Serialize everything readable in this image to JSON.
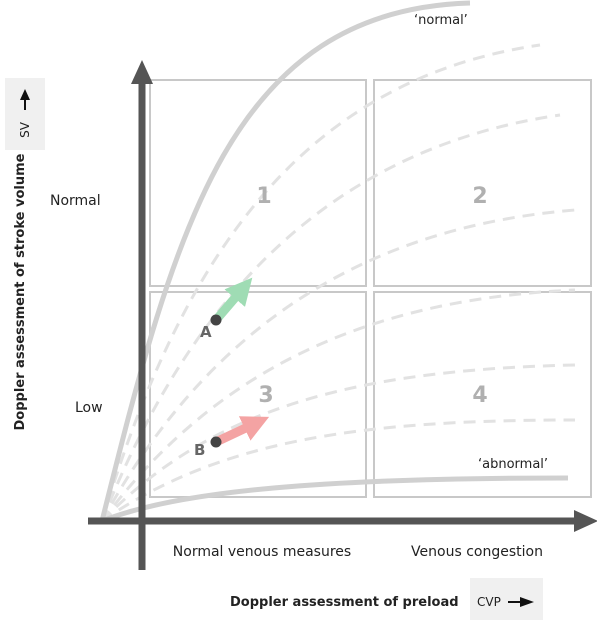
{
  "y_axis": {
    "title": "Doppler assessment of stroke volume",
    "levels": [
      "Normal",
      "Low"
    ],
    "key_label": "SV"
  },
  "x_axis": {
    "title": "Doppler assessment of preload",
    "columns": [
      "Normal venous measures",
      "Venous congestion"
    ],
    "key_label": "CVP"
  },
  "quadrants": [
    "1",
    "2",
    "3",
    "4"
  ],
  "curves": {
    "upper_label": "‘normal’",
    "lower_label": "‘abnormal’"
  },
  "points": [
    {
      "label": "A",
      "arrow_color": "#9fdcb4"
    },
    {
      "label": "B",
      "arrow_color": "#f4a3a3"
    }
  ],
  "colors": {
    "axis": "#555555",
    "curve": "#d0d0d0",
    "dashed_curve": "#e2e2e2",
    "quadrant_border": "#c8c8c8",
    "key_box": "#f0f0f0"
  }
}
